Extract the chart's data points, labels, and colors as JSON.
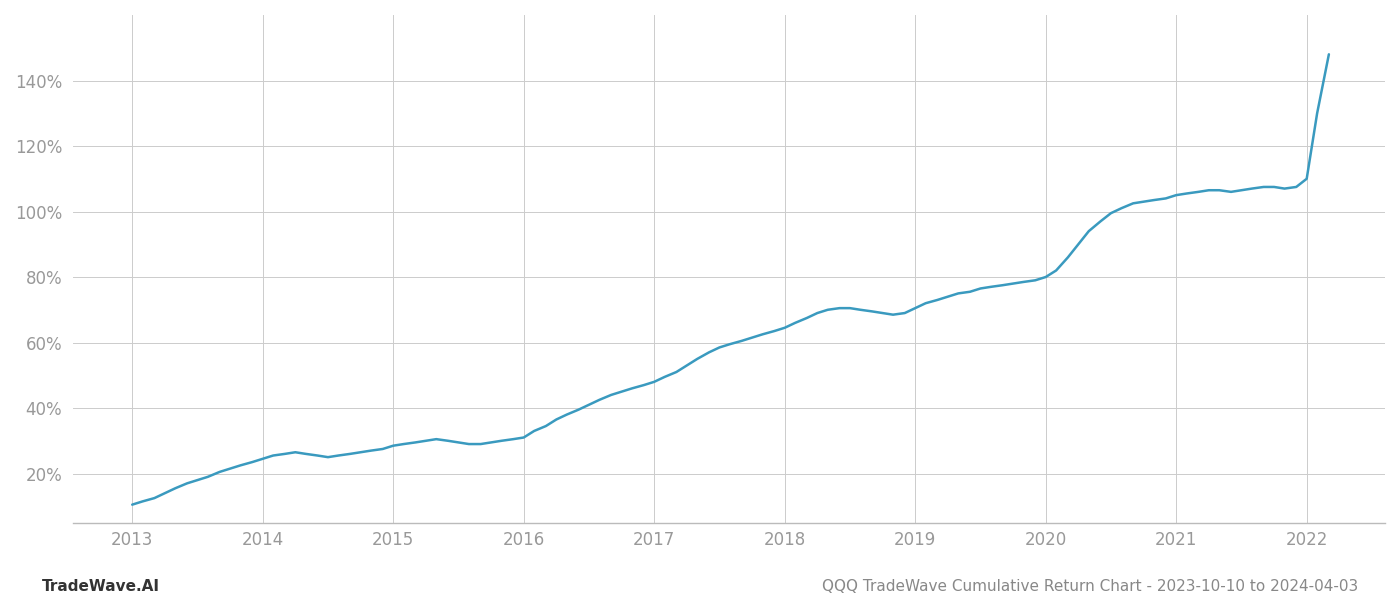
{
  "title": "QQQ TradeWave Cumulative Return Chart - 2023-10-10 to 2024-04-03",
  "watermark": "TradeWave.AI",
  "line_color": "#3a9abf",
  "line_width": 1.8,
  "background_color": "#ffffff",
  "grid_color": "#cccccc",
  "x_years": [
    2013,
    2014,
    2015,
    2016,
    2017,
    2018,
    2019,
    2020,
    2021,
    2022
  ],
  "y_ticks": [
    20,
    40,
    60,
    80,
    100,
    120,
    140
  ],
  "ylim": [
    5,
    160
  ],
  "xlim": [
    2012.55,
    2022.6
  ],
  "data_x": [
    2013.0,
    2013.08,
    2013.17,
    2013.25,
    2013.33,
    2013.42,
    2013.5,
    2013.58,
    2013.67,
    2013.75,
    2013.83,
    2013.92,
    2014.0,
    2014.08,
    2014.17,
    2014.25,
    2014.33,
    2014.42,
    2014.5,
    2014.58,
    2014.67,
    2014.75,
    2014.83,
    2014.92,
    2015.0,
    2015.08,
    2015.17,
    2015.25,
    2015.33,
    2015.42,
    2015.5,
    2015.58,
    2015.67,
    2015.75,
    2015.83,
    2015.92,
    2016.0,
    2016.08,
    2016.17,
    2016.25,
    2016.33,
    2016.42,
    2016.5,
    2016.58,
    2016.67,
    2016.75,
    2016.83,
    2016.92,
    2017.0,
    2017.08,
    2017.17,
    2017.25,
    2017.33,
    2017.42,
    2017.5,
    2017.58,
    2017.67,
    2017.75,
    2017.83,
    2017.92,
    2018.0,
    2018.08,
    2018.17,
    2018.25,
    2018.33,
    2018.42,
    2018.5,
    2018.58,
    2018.67,
    2018.75,
    2018.83,
    2018.92,
    2019.0,
    2019.08,
    2019.17,
    2019.25,
    2019.33,
    2019.42,
    2019.5,
    2019.58,
    2019.67,
    2019.75,
    2019.83,
    2019.92,
    2020.0,
    2020.08,
    2020.17,
    2020.25,
    2020.33,
    2020.42,
    2020.5,
    2020.58,
    2020.67,
    2020.75,
    2020.83,
    2020.92,
    2021.0,
    2021.08,
    2021.17,
    2021.25,
    2021.33,
    2021.42,
    2021.5,
    2021.58,
    2021.67,
    2021.75,
    2021.83,
    2021.92,
    2022.0,
    2022.08,
    2022.17
  ],
  "data_y": [
    10.5,
    11.5,
    12.5,
    14.0,
    15.5,
    17.0,
    18.0,
    19.0,
    20.5,
    21.5,
    22.5,
    23.5,
    24.5,
    25.5,
    26.0,
    26.5,
    26.0,
    25.5,
    25.0,
    25.5,
    26.0,
    26.5,
    27.0,
    27.5,
    28.5,
    29.0,
    29.5,
    30.0,
    30.5,
    30.0,
    29.5,
    29.0,
    29.0,
    29.5,
    30.0,
    30.5,
    31.0,
    33.0,
    34.5,
    36.5,
    38.0,
    39.5,
    41.0,
    42.5,
    44.0,
    45.0,
    46.0,
    47.0,
    48.0,
    49.5,
    51.0,
    53.0,
    55.0,
    57.0,
    58.5,
    59.5,
    60.5,
    61.5,
    62.5,
    63.5,
    64.5,
    66.0,
    67.5,
    69.0,
    70.0,
    70.5,
    70.5,
    70.0,
    69.5,
    69.0,
    68.5,
    69.0,
    70.5,
    72.0,
    73.0,
    74.0,
    75.0,
    75.5,
    76.5,
    77.0,
    77.5,
    78.0,
    78.5,
    79.0,
    80.0,
    82.0,
    86.0,
    90.0,
    94.0,
    97.0,
    99.5,
    101.0,
    102.5,
    103.0,
    103.5,
    104.0,
    105.0,
    105.5,
    106.0,
    106.5,
    106.5,
    106.0,
    106.5,
    107.0,
    107.5,
    107.5,
    107.0,
    107.5,
    110.0,
    130.0,
    148.0
  ],
  "title_fontsize": 11,
  "watermark_fontsize": 11,
  "tick_fontsize": 12,
  "tick_color": "#999999"
}
